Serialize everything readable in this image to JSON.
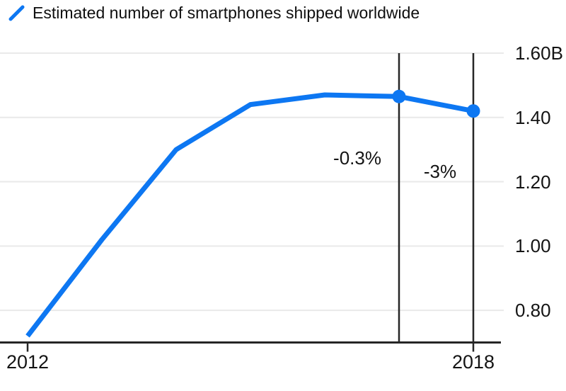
{
  "chart_data": {
    "type": "line",
    "title": "Estimated number of smartphones shipped worldwide",
    "legend_position": "top-left",
    "grid": true,
    "x": [
      2012,
      2013,
      2014,
      2015,
      2016,
      2017,
      2018
    ],
    "series": [
      {
        "name": "Estimated number of smartphones shipped worldwide",
        "values": [
          0.72,
          1.02,
          1.3,
          1.44,
          1.47,
          1.465,
          1.42
        ]
      }
    ],
    "ylim": [
      0.7,
      1.6
    ],
    "yticks": [
      {
        "value": 0.8,
        "label": "0.80"
      },
      {
        "value": 1.0,
        "label": "1.00"
      },
      {
        "value": 1.2,
        "label": "1.20"
      },
      {
        "value": 1.4,
        "label": "1.40"
      },
      {
        "value": 1.6,
        "label": "1.60B"
      }
    ],
    "xticks": [
      {
        "value": 2012,
        "label": "2012"
      },
      {
        "value": 2018,
        "label": "2018"
      }
    ],
    "marker_lines": [
      2017,
      2018
    ],
    "dot_points": [
      2017,
      2018
    ],
    "annotations": [
      {
        "label": "-0.3%",
        "x": 2016.44,
        "y": 1.275
      },
      {
        "label": "-3%",
        "x": 2017.55,
        "y": 1.232
      }
    ],
    "colors": {
      "line": "#0d77f2",
      "grid": "#e9e9e9",
      "axis": "#262626",
      "text": "#141414"
    }
  }
}
